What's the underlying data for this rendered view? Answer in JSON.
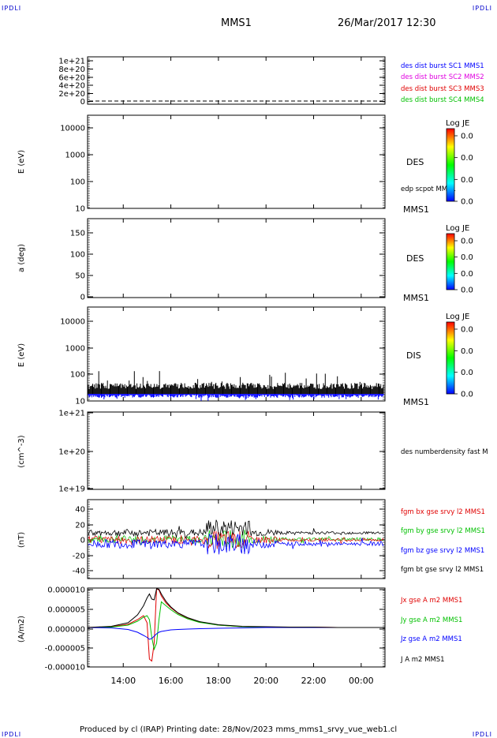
{
  "header": {
    "corner_tl": "IPDLI",
    "corner_tr": "IPDLI",
    "corner_bl": "IPDLI",
    "corner_br": "IPDLI",
    "spacecraft": "MMS1",
    "datetime": "26/Mar/2017 12:30"
  },
  "footer": {
    "text": "Produced by cl (IRAP)   Printing date: 28/Nov/2023   mms_mms1_srvy_vue_web1.cl"
  },
  "colors": {
    "blue": "#0000ff",
    "magenta": "#e000e0",
    "red": "#e00000",
    "green": "#00c000",
    "black": "#000000"
  },
  "chart_data": [
    {
      "type": "line",
      "panel": "dist-burst",
      "ylabel": "",
      "yticks": [
        "1e+21",
        "8e+20",
        "6e+20",
        "4e+20",
        "2e+20",
        "0"
      ],
      "ylim": [
        0,
        1e+21
      ],
      "legend": [
        {
          "label": "des dist burst SC1 MMS1",
          "color": "blue"
        },
        {
          "label": "des dist burst SC2 MMS2",
          "color": "magenta"
        },
        {
          "label": "des dist burst SC3 MMS3",
          "color": "red"
        },
        {
          "label": "des dist burst SC4 MMS4",
          "color": "green"
        }
      ],
      "reference_line": 0
    },
    {
      "type": "heatmap",
      "panel": "des-energy",
      "ylabel": "E (eV)",
      "yscale": "log",
      "yticks": [
        "10000",
        "1000",
        "100",
        "10"
      ],
      "ylim": [
        10,
        20000
      ],
      "label": "DES",
      "overlay_label": "edp scpot MMS1",
      "sc_label": "MMS1",
      "colorbar": {
        "title": "Log JE",
        "ticks": [
          "0.0",
          "0.0",
          "0.0",
          "0.0"
        ]
      }
    },
    {
      "type": "heatmap",
      "panel": "des-pitch",
      "ylabel": "a (deg)",
      "yticks": [
        "150",
        "100",
        "50",
        "0"
      ],
      "ylim": [
        0,
        180
      ],
      "label": "DES",
      "sc_label": "MMS1",
      "colorbar": {
        "title": "Log JE",
        "ticks": [
          "0.0",
          "0.0",
          "0.0",
          "0.0"
        ]
      }
    },
    {
      "type": "heatmap",
      "panel": "dis-energy",
      "ylabel": "E (eV)",
      "yscale": "log",
      "yticks": [
        "10000",
        "1000",
        "100",
        "10"
      ],
      "ylim": [
        10,
        20000
      ],
      "label": "DIS",
      "sc_label": "MMS1",
      "colorbar": {
        "title": "Log JE",
        "ticks": [
          "0.0",
          "0.0",
          "0.0",
          "0.0"
        ]
      }
    },
    {
      "type": "line",
      "panel": "density",
      "ylabel": "(cm^-3)",
      "yscale": "log",
      "yticks": [
        "1e+21",
        "1e+20",
        "1e+19"
      ],
      "ylim": [
        1e+19,
        1e+21
      ],
      "legend": [
        {
          "label": "des numberdensity fast M",
          "color": "black"
        }
      ]
    },
    {
      "type": "line",
      "panel": "fgm",
      "ylabel": "(nT)",
      "yticks": [
        "40",
        "20",
        "0",
        "-20",
        "-40"
      ],
      "ylim": [
        -50,
        50
      ],
      "legend": [
        {
          "label": "fgm bx gse srvy l2 MMS1",
          "color": "red"
        },
        {
          "label": "fgm by gse srvy l2 MMS1",
          "color": "green"
        },
        {
          "label": "fgm bz gse srvy l2 MMS1",
          "color": "blue"
        },
        {
          "label": "fgm bt gse srvy l2 MMS1",
          "color": "black"
        }
      ]
    },
    {
      "type": "line",
      "panel": "current",
      "ylabel": "(A/m2)",
      "yticks": [
        "0.000010",
        "0.000005",
        "0.000000",
        "-0.000005",
        "-0.000010"
      ],
      "ylim": [
        -1e-05,
        1e-05
      ],
      "legend": [
        {
          "label": "Jx gse A m2 MMS1",
          "color": "red"
        },
        {
          "label": "Jy gse A m2 MMS1",
          "color": "green"
        },
        {
          "label": "Jz gse A m2 MMS1",
          "color": "blue"
        },
        {
          "label": "J A m2 MMS1",
          "color": "black"
        }
      ],
      "series": [
        {
          "name": "Jx gse A m2 MMS1",
          "color": "red",
          "x": [
            12.5,
            13.5,
            14.2,
            14.6,
            14.85,
            15.0,
            15.1,
            15.2,
            15.3,
            15.4,
            15.5,
            15.6,
            15.8,
            16.0,
            16.3,
            16.7,
            17.2,
            18.0,
            19.0,
            20.0,
            21.0,
            22.0,
            23.0,
            24.0,
            25.0
          ],
          "y": [
            0,
            2e-07,
            8e-07,
            2e-06,
            3e-06,
            1.2e-06,
            -8e-06,
            -8.5e-06,
            -4e-06,
            9.8e-06,
            9.5e-06,
            8e-06,
            6.2e-06,
            5e-06,
            3.6e-06,
            2.4e-06,
            1.4e-06,
            6e-07,
            2e-07,
            1e-07,
            0,
            1e-07,
            0,
            0,
            0
          ]
        },
        {
          "name": "Jy gse A m2 MMS1",
          "color": "green",
          "x": [
            12.5,
            13.5,
            14.2,
            14.6,
            14.85,
            15.0,
            15.1,
            15.2,
            15.3,
            15.4,
            15.5,
            15.6,
            15.8,
            16.0,
            16.3,
            16.7,
            17.2,
            18.0,
            19.0,
            20.0,
            21.0,
            22.0,
            23.0,
            24.0,
            25.0
          ],
          "y": [
            0,
            1e-07,
            6e-07,
            1.6e-06,
            2.6e-06,
            3e-06,
            2e-06,
            -2.5e-06,
            -5.5e-06,
            -4e-06,
            2e-06,
            6.5e-06,
            5.5e-06,
            4.5e-06,
            3.3e-06,
            2.2e-06,
            1.3e-06,
            6e-07,
            2e-07,
            1e-07,
            0,
            0,
            0,
            0,
            0
          ]
        },
        {
          "name": "Jz gse A m2 MMS1",
          "color": "blue",
          "x": [
            12.5,
            13.5,
            14.2,
            14.6,
            14.85,
            15.0,
            15.1,
            15.2,
            15.3,
            15.4,
            15.5,
            15.6,
            15.8,
            16.0,
            16.3,
            16.7,
            17.2,
            18.0,
            19.0,
            20.0,
            21.0,
            22.0,
            23.0,
            24.0,
            25.0
          ],
          "y": [
            0,
            -1e-07,
            -5e-07,
            -1.2e-06,
            -2e-06,
            -2.5e-06,
            -3e-06,
            -2.8e-06,
            -2.2e-06,
            -1.6e-06,
            -1.2e-06,
            -1e-06,
            -8e-07,
            -6e-07,
            -5e-07,
            -4e-07,
            -3e-07,
            -2e-07,
            -1e-07,
            0,
            0,
            0,
            0,
            0,
            0
          ]
        },
        {
          "name": "J A m2 MMS1",
          "color": "black",
          "x": [
            12.5,
            13.5,
            14.2,
            14.6,
            14.85,
            15.0,
            15.1,
            15.2,
            15.3,
            15.4,
            15.5,
            15.6,
            15.8,
            16.0,
            16.3,
            16.7,
            17.2,
            18.0,
            19.0,
            20.0,
            21.0,
            22.0,
            23.0,
            24.0,
            25.0
          ],
          "y": [
            0,
            3e-07,
            1.2e-06,
            3.2e-06,
            5.5e-06,
            7.5e-06,
            8.5e-06,
            7.2e-06,
            7e-06,
            9.8e-06,
            9.7e-06,
            8.5e-06,
            6.6e-06,
            5.2e-06,
            3.7e-06,
            2.5e-06,
            1.5e-06,
            7e-07,
            3e-07,
            2e-07,
            1e-07,
            1e-07,
            0,
            0,
            0
          ]
        }
      ]
    }
  ],
  "time_axis": {
    "xlim": [
      12.5,
      25.0
    ],
    "ticks": [
      {
        "value": 14,
        "label": "14:00"
      },
      {
        "value": 16,
        "label": "16:00"
      },
      {
        "value": 18,
        "label": "18:00"
      },
      {
        "value": 20,
        "label": "20:00"
      },
      {
        "value": 22,
        "label": "22:00"
      },
      {
        "value": 24,
        "label": "00:00"
      }
    ]
  }
}
